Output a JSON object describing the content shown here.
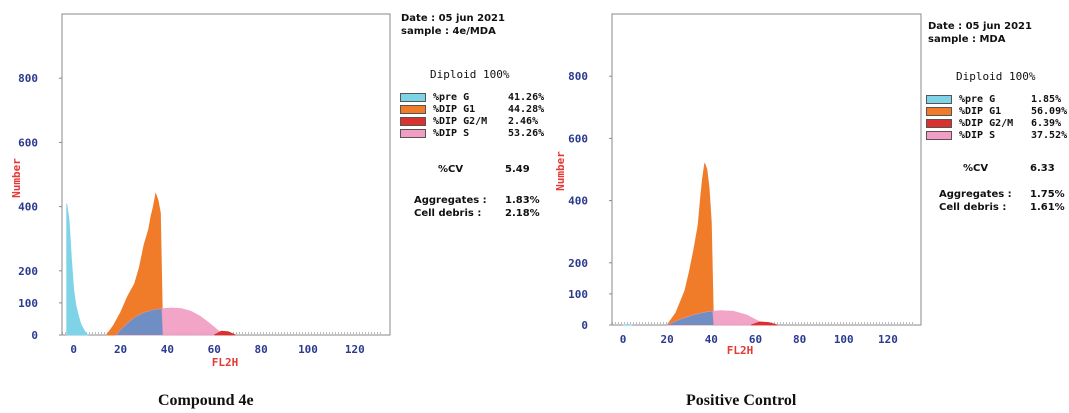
{
  "chart_data": [
    {
      "type": "histogram",
      "caption": "Compound 4e",
      "date": "Date : 05 jun 2021",
      "sample": "sample : 4e/MDA",
      "diploid": "Diploid 100%",
      "xlabel": "FL2H",
      "ylabel": "Number",
      "xlim": [
        -5,
        135
      ],
      "ylim": [
        0,
        1000
      ],
      "xticks": [
        "0",
        "20",
        "40",
        "60",
        "80",
        "100",
        "120"
      ],
      "xtick_values": [
        0,
        20,
        40,
        60,
        80,
        100,
        120
      ],
      "yticks": [
        "0",
        "100",
        "200",
        "400",
        "600",
        "800"
      ],
      "ytick_values": [
        0,
        100,
        200,
        400,
        600,
        800
      ],
      "legend": [
        {
          "name": "%pre G",
          "value": "41.26%",
          "color": "#7fd3e6"
        },
        {
          "name": "%DIP G1",
          "value": "44.28%",
          "color": "#f07c2a"
        },
        {
          "name": "%DIP G2/M",
          "value": "2.46%",
          "color": "#d93030"
        },
        {
          "name": "%DIP S",
          "value": "53.26%",
          "color": "#f29ec4"
        }
      ],
      "cv_label": "%CV",
      "cv_value": "5.49",
      "aggregates_label": "Aggregates :",
      "aggregates_value": "1.83%",
      "debris_label": "Cell debris :",
      "debris_value": "2.18%",
      "series": [
        {
          "name": "%pre G",
          "color": "#7fd3e6",
          "x": [
            -3,
            -2,
            -1,
            0,
            1,
            2,
            3,
            4,
            5,
            6
          ],
          "y": [
            410,
            360,
            240,
            140,
            90,
            60,
            35,
            20,
            8,
            0
          ]
        },
        {
          "name": "%DIP G1",
          "color": "#f07c2a",
          "x": [
            14,
            17,
            20,
            23,
            26,
            28,
            30,
            32,
            33,
            34,
            35,
            36,
            37,
            38
          ],
          "y": [
            0,
            30,
            70,
            120,
            160,
            210,
            280,
            330,
            370,
            400,
            440,
            420,
            380,
            0
          ]
        },
        {
          "name": "%DIP S",
          "color": "#f29ec4",
          "x": [
            18,
            22,
            26,
            30,
            34,
            38,
            42,
            46,
            50,
            54,
            58,
            62,
            64
          ],
          "y": [
            0,
            30,
            55,
            70,
            78,
            82,
            84,
            82,
            74,
            58,
            36,
            12,
            0
          ]
        },
        {
          "name": "%DIP G2/M",
          "color": "#d93030",
          "x": [
            60,
            63,
            66,
            69
          ],
          "y": [
            0,
            12,
            10,
            0
          ]
        }
      ]
    },
    {
      "type": "histogram",
      "caption": "Positive Control",
      "date": "Date : 05 jun 2021",
      "sample": "sample : MDA",
      "diploid": "Diploid 100%",
      "xlabel": "FL2H",
      "ylabel": "Number",
      "xlim": [
        -5,
        135
      ],
      "ylim": [
        0,
        1000
      ],
      "xticks": [
        "0",
        "20",
        "40",
        "60",
        "80",
        "100",
        "120"
      ],
      "xtick_values": [
        0,
        20,
        40,
        60,
        80,
        100,
        120
      ],
      "yticks": [
        "0",
        "100",
        "200",
        "400",
        "600",
        "800"
      ],
      "ytick_values": [
        0,
        100,
        200,
        400,
        600,
        800
      ],
      "legend": [
        {
          "name": "%pre G",
          "value": "1.85%",
          "color": "#7fd3e6"
        },
        {
          "name": "%DIP G1",
          "value": "56.09%",
          "color": "#f07c2a"
        },
        {
          "name": "%DIP G2/M",
          "value": "6.39%",
          "color": "#d93030"
        },
        {
          "name": "%DIP S",
          "value": "37.52%",
          "color": "#f29ec4"
        }
      ],
      "cv_label": "%CV",
      "cv_value": "6.33",
      "aggregates_label": "Aggregates :",
      "aggregates_value": "1.75%",
      "debris_label": "Cell debris :",
      "debris_value": "1.61%",
      "series": [
        {
          "name": "%pre G",
          "color": "#7fd3e6",
          "x": [
            0,
            2,
            4
          ],
          "y": [
            0,
            2,
            0
          ]
        },
        {
          "name": "%DIP G1",
          "color": "#f07c2a",
          "x": [
            20,
            24,
            28,
            30,
            32,
            34,
            35,
            36,
            37,
            38,
            39,
            40,
            41
          ],
          "y": [
            0,
            40,
            110,
            170,
            240,
            320,
            400,
            470,
            520,
            500,
            440,
            330,
            0
          ]
        },
        {
          "name": "%DIP S",
          "color": "#f29ec4",
          "x": [
            20,
            26,
            32,
            38,
            44,
            50,
            56,
            62,
            66
          ],
          "y": [
            0,
            18,
            32,
            42,
            46,
            44,
            32,
            10,
            0
          ]
        },
        {
          "name": "%DIP G2/M",
          "color": "#d93030",
          "x": [
            58,
            62,
            66,
            70
          ],
          "y": [
            0,
            10,
            8,
            0
          ]
        }
      ]
    }
  ]
}
